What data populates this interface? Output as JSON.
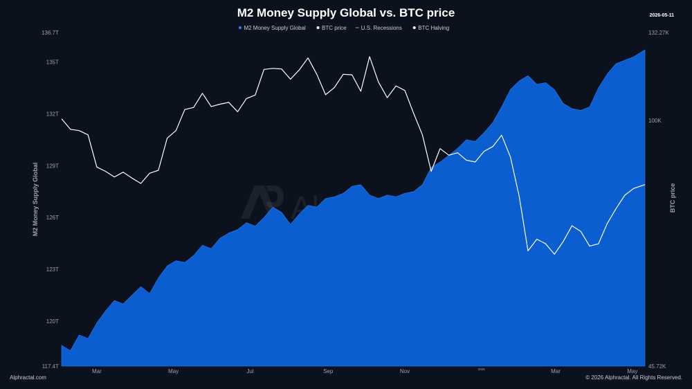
{
  "chart_data": {
    "type": "area",
    "title": "M2 Money Supply Global vs. BTC price",
    "date_badge": "2026-05-11",
    "legend": [
      {
        "name": "M2 Money Supply Global",
        "color": "#2f7ef7",
        "icon": "dot-icon"
      },
      {
        "name": "BTC price",
        "color": "#ffffff",
        "icon": "dot-icon"
      },
      {
        "name": "U.S. Recessions",
        "color": "#9aa1ab",
        "icon": "dash-icon"
      },
      {
        "name": "BTC Halving",
        "color": "#ffffff",
        "icon": "dot-icon"
      }
    ],
    "legend_position": "top-center",
    "ylabel_left": "M2 Money Supply Global",
    "ylabel_right": "BTC price",
    "y_left": {
      "min": 117.4,
      "max": 136.7,
      "unit": "T",
      "tick_labels": [
        "117.4T",
        "120T",
        "123T",
        "126T",
        "129T",
        "132T",
        "135T",
        "136.7T"
      ],
      "tick_values": [
        117.4,
        120,
        123,
        126,
        129,
        132,
        135,
        136.7
      ]
    },
    "y_right": {
      "min": 45.72,
      "max": 132.27,
      "unit": "K",
      "scale": "log",
      "tick_labels": [
        "45.72K",
        "100K",
        "132.27K"
      ],
      "tick_values": [
        45.72,
        100,
        132.27
      ]
    },
    "x_axis": {
      "start": "2025-02-01",
      "end": "2026-05-11",
      "tick_labels": [
        "Mar",
        "May",
        "Jul",
        "Sep",
        "Nov",
        "2026",
        "Mar",
        "May"
      ],
      "tick_dates": [
        "2025-03-01",
        "2025-05-01",
        "2025-07-01",
        "2025-09-01",
        "2025-11-01",
        "2026-01-01",
        "2026-03-01",
        "2026-05-01"
      ]
    },
    "grid": false,
    "series": [
      {
        "name": "M2 Money Supply Global",
        "axis": "left",
        "type": "area",
        "color": "#0a5ed0",
        "points": [
          [
            "2025-02-01",
            118.6
          ],
          [
            "2025-02-08",
            118.3
          ],
          [
            "2025-02-15",
            119.2
          ],
          [
            "2025-02-22",
            119.0
          ],
          [
            "2025-03-01",
            119.9
          ],
          [
            "2025-03-08",
            120.6
          ],
          [
            "2025-03-15",
            121.2
          ],
          [
            "2025-03-22",
            121.0
          ],
          [
            "2025-03-29",
            121.5
          ],
          [
            "2025-04-05",
            122.0
          ],
          [
            "2025-04-12",
            121.6
          ],
          [
            "2025-04-19",
            122.5
          ],
          [
            "2025-04-26",
            123.2
          ],
          [
            "2025-05-03",
            123.5
          ],
          [
            "2025-05-10",
            123.4
          ],
          [
            "2025-05-17",
            123.8
          ],
          [
            "2025-05-24",
            124.4
          ],
          [
            "2025-05-31",
            124.2
          ],
          [
            "2025-06-07",
            124.8
          ],
          [
            "2025-06-14",
            125.1
          ],
          [
            "2025-06-21",
            125.3
          ],
          [
            "2025-06-28",
            125.7
          ],
          [
            "2025-07-05",
            125.5
          ],
          [
            "2025-07-12",
            126.0
          ],
          [
            "2025-07-19",
            126.6
          ],
          [
            "2025-07-26",
            126.3
          ],
          [
            "2025-08-02",
            125.6
          ],
          [
            "2025-08-09",
            126.2
          ],
          [
            "2025-08-16",
            126.7
          ],
          [
            "2025-08-23",
            126.6
          ],
          [
            "2025-08-30",
            127.1
          ],
          [
            "2025-09-06",
            127.2
          ],
          [
            "2025-09-13",
            127.4
          ],
          [
            "2025-09-20",
            127.8
          ],
          [
            "2025-09-27",
            127.9
          ],
          [
            "2025-10-04",
            127.3
          ],
          [
            "2025-10-11",
            127.1
          ],
          [
            "2025-10-18",
            127.3
          ],
          [
            "2025-10-25",
            127.2
          ],
          [
            "2025-11-01",
            127.4
          ],
          [
            "2025-11-08",
            127.5
          ],
          [
            "2025-11-15",
            127.9
          ],
          [
            "2025-11-22",
            128.9
          ],
          [
            "2025-11-29",
            129.2
          ],
          [
            "2025-12-06",
            129.6
          ],
          [
            "2025-12-13",
            130.0
          ],
          [
            "2025-12-20",
            130.5
          ],
          [
            "2025-12-27",
            130.4
          ],
          [
            "2026-01-03",
            130.9
          ],
          [
            "2026-01-10",
            131.5
          ],
          [
            "2026-01-17",
            132.4
          ],
          [
            "2026-01-24",
            133.4
          ],
          [
            "2026-01-31",
            133.9
          ],
          [
            "2026-02-07",
            134.2
          ],
          [
            "2026-02-14",
            133.7
          ],
          [
            "2026-02-21",
            133.8
          ],
          [
            "2026-02-28",
            133.4
          ],
          [
            "2026-03-07",
            132.6
          ],
          [
            "2026-03-14",
            132.3
          ],
          [
            "2026-03-21",
            132.2
          ],
          [
            "2026-03-28",
            132.4
          ],
          [
            "2026-04-04",
            133.5
          ],
          [
            "2026-04-11",
            134.3
          ],
          [
            "2026-04-18",
            134.9
          ],
          [
            "2026-04-25",
            135.1
          ],
          [
            "2026-05-02",
            135.3
          ],
          [
            "2026-05-11",
            135.7
          ]
        ]
      },
      {
        "name": "BTC price",
        "axis": "right",
        "type": "line",
        "color": "#ffffff",
        "points": [
          [
            "2025-02-01",
            100.5
          ],
          [
            "2025-02-08",
            97.2
          ],
          [
            "2025-02-15",
            96.8
          ],
          [
            "2025-02-22",
            95.5
          ],
          [
            "2025-03-01",
            86.2
          ],
          [
            "2025-03-08",
            85.0
          ],
          [
            "2025-03-15",
            83.5
          ],
          [
            "2025-03-22",
            84.8
          ],
          [
            "2025-03-29",
            83.2
          ],
          [
            "2025-04-05",
            81.8
          ],
          [
            "2025-04-12",
            84.5
          ],
          [
            "2025-04-19",
            85.3
          ],
          [
            "2025-04-26",
            94.5
          ],
          [
            "2025-05-03",
            96.8
          ],
          [
            "2025-05-10",
            103.5
          ],
          [
            "2025-05-17",
            104.2
          ],
          [
            "2025-05-24",
            109.0
          ],
          [
            "2025-05-31",
            104.5
          ],
          [
            "2025-06-07",
            105.3
          ],
          [
            "2025-06-14",
            105.9
          ],
          [
            "2025-06-21",
            102.8
          ],
          [
            "2025-06-28",
            107.2
          ],
          [
            "2025-07-05",
            108.4
          ],
          [
            "2025-07-12",
            117.6
          ],
          [
            "2025-07-19",
            118.0
          ],
          [
            "2025-07-26",
            117.8
          ],
          [
            "2025-08-02",
            114.0
          ],
          [
            "2025-08-09",
            117.4
          ],
          [
            "2025-08-16",
            122.0
          ],
          [
            "2025-08-23",
            115.8
          ],
          [
            "2025-08-30",
            108.5
          ],
          [
            "2025-09-06",
            111.0
          ],
          [
            "2025-09-13",
            115.8
          ],
          [
            "2025-09-20",
            115.6
          ],
          [
            "2025-09-27",
            109.7
          ],
          [
            "2025-10-04",
            122.5
          ],
          [
            "2025-10-11",
            113.0
          ],
          [
            "2025-10-18",
            107.5
          ],
          [
            "2025-10-25",
            111.6
          ],
          [
            "2025-11-01",
            110.0
          ],
          [
            "2025-11-08",
            102.3
          ],
          [
            "2025-11-15",
            95.5
          ],
          [
            "2025-11-22",
            85.0
          ],
          [
            "2025-11-29",
            91.4
          ],
          [
            "2025-12-06",
            89.5
          ],
          [
            "2025-12-13",
            90.2
          ],
          [
            "2025-12-20",
            88.1
          ],
          [
            "2025-12-27",
            87.6
          ],
          [
            "2026-01-03",
            90.6
          ],
          [
            "2026-01-10",
            92.0
          ],
          [
            "2026-01-17",
            95.4
          ],
          [
            "2026-01-24",
            89.0
          ],
          [
            "2026-01-31",
            78.5
          ],
          [
            "2026-02-07",
            66.0
          ],
          [
            "2026-02-14",
            68.5
          ],
          [
            "2026-02-21",
            67.5
          ],
          [
            "2026-02-28",
            65.3
          ],
          [
            "2026-03-07",
            68.0
          ],
          [
            "2026-03-14",
            71.5
          ],
          [
            "2026-03-21",
            70.2
          ],
          [
            "2026-03-28",
            67.0
          ],
          [
            "2026-04-04",
            67.5
          ],
          [
            "2026-04-11",
            72.0
          ],
          [
            "2026-04-18",
            75.5
          ],
          [
            "2026-04-25",
            78.8
          ],
          [
            "2026-05-02",
            80.5
          ],
          [
            "2026-05-11",
            81.5
          ]
        ]
      }
    ],
    "watermark": "Alphractal"
  },
  "footer": {
    "left": "Alphractal.com",
    "right": "© 2026 Alphractal. All Rights Reserved."
  }
}
